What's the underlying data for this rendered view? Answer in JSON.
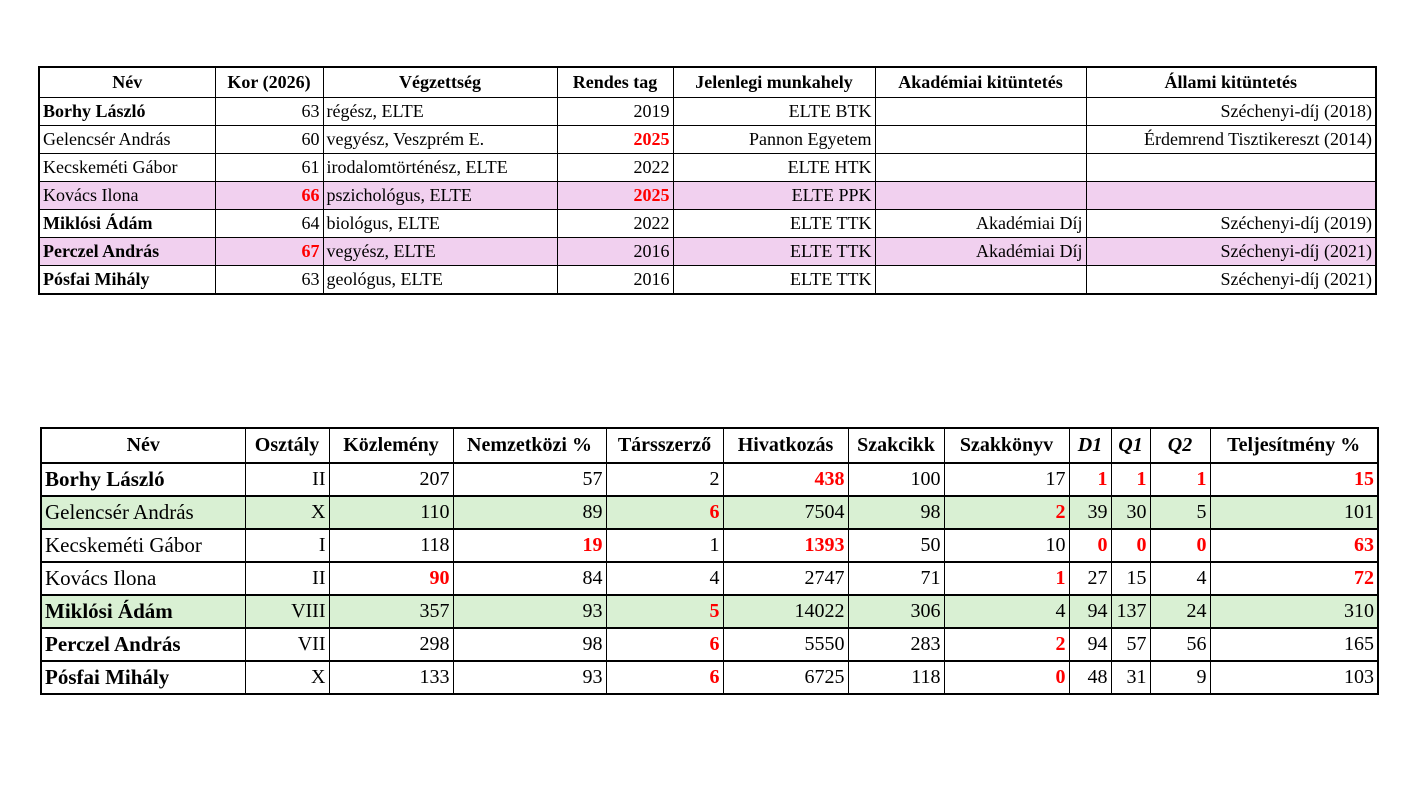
{
  "table1": {
    "headers": [
      "Név",
      "Kor (2026)",
      "Végzettség",
      "Rendes tag",
      "Jelenlegi munkahely",
      "Akadémiai kitüntetés",
      "Állami kitüntetés"
    ],
    "highlight_color": "#f1d0ef",
    "rows": [
      {
        "name": "Borhy László",
        "bold": true,
        "hl": false,
        "cells": [
          {
            "v": "63"
          },
          {
            "v": "régész, ELTE"
          },
          {
            "v": "2019"
          },
          {
            "v": "ELTE BTK"
          },
          {
            "v": ""
          },
          {
            "v": "Széchenyi-díj (2018)"
          }
        ]
      },
      {
        "name": "Gelencsér András",
        "bold": false,
        "hl": false,
        "cells": [
          {
            "v": "60"
          },
          {
            "v": "vegyész, Veszprém E."
          },
          {
            "v": "2025",
            "red": true
          },
          {
            "v": "Pannon Egyetem"
          },
          {
            "v": ""
          },
          {
            "v": "Érdemrend Tisztikereszt (2014)"
          }
        ]
      },
      {
        "name": "Kecskeméti Gábor",
        "bold": false,
        "hl": false,
        "cells": [
          {
            "v": "61"
          },
          {
            "v": "irodalomtörténész, ELTE"
          },
          {
            "v": "2022"
          },
          {
            "v": "ELTE HTK"
          },
          {
            "v": ""
          },
          {
            "v": ""
          }
        ]
      },
      {
        "name": "Kovács Ilona",
        "bold": false,
        "hl": true,
        "cells": [
          {
            "v": "66",
            "red": true
          },
          {
            "v": "pszichológus, ELTE"
          },
          {
            "v": "2025",
            "red": true
          },
          {
            "v": "ELTE PPK"
          },
          {
            "v": ""
          },
          {
            "v": ""
          }
        ]
      },
      {
        "name": "Miklósi Ádám",
        "bold": true,
        "hl": false,
        "cells": [
          {
            "v": "64"
          },
          {
            "v": "biológus, ELTE"
          },
          {
            "v": "2022"
          },
          {
            "v": "ELTE TTK"
          },
          {
            "v": "Akadémiai Díj"
          },
          {
            "v": "Széchenyi-díj (2019)"
          }
        ]
      },
      {
        "name": "Perczel András",
        "bold": true,
        "hl": true,
        "cells": [
          {
            "v": "67",
            "red": true
          },
          {
            "v": "vegyész, ELTE"
          },
          {
            "v": "2016"
          },
          {
            "v": "ELTE TTK"
          },
          {
            "v": "Akadémiai Díj"
          },
          {
            "v": "Széchenyi-díj (2021)"
          }
        ]
      },
      {
        "name": "Pósfai Mihály",
        "bold": true,
        "hl": false,
        "cells": [
          {
            "v": "63"
          },
          {
            "v": "geológus, ELTE"
          },
          {
            "v": "2016"
          },
          {
            "v": "ELTE TTK"
          },
          {
            "v": ""
          },
          {
            "v": "Széchenyi-díj (2021)"
          }
        ]
      }
    ]
  },
  "table2": {
    "headers": [
      "Név",
      "Osztály",
      "Közlemény",
      "Nemzetközi %",
      "Társszerző",
      "Hivatkozás",
      "Szakcikk",
      "Szakkönyv",
      "D1",
      "Q1",
      "Q2",
      "Teljesítmény %"
    ],
    "highlight_color": "#d9f0d3",
    "rows": [
      {
        "name": "Borhy László",
        "bold": true,
        "hl": false,
        "cells": [
          {
            "v": "II"
          },
          {
            "v": "207"
          },
          {
            "v": "57"
          },
          {
            "v": "2"
          },
          {
            "v": "438",
            "red": true
          },
          {
            "v": "100"
          },
          {
            "v": "17"
          },
          {
            "v": "1",
            "red": true
          },
          {
            "v": "1",
            "red": true
          },
          {
            "v": "1",
            "red": true
          },
          {
            "v": "15",
            "red": true
          }
        ]
      },
      {
        "name": "Gelencsér András",
        "bold": false,
        "hl": true,
        "cells": [
          {
            "v": "X"
          },
          {
            "v": "110"
          },
          {
            "v": "89"
          },
          {
            "v": "6",
            "red": true
          },
          {
            "v": "7504"
          },
          {
            "v": "98"
          },
          {
            "v": "2",
            "red": true
          },
          {
            "v": "39"
          },
          {
            "v": "30"
          },
          {
            "v": "5"
          },
          {
            "v": "101"
          }
        ]
      },
      {
        "name": "Kecskeméti Gábor",
        "bold": false,
        "hl": false,
        "cells": [
          {
            "v": "I"
          },
          {
            "v": "118"
          },
          {
            "v": "19",
            "red": true
          },
          {
            "v": "1"
          },
          {
            "v": "1393",
            "red": true
          },
          {
            "v": "50"
          },
          {
            "v": "10"
          },
          {
            "v": "0",
            "red": true
          },
          {
            "v": "0",
            "red": true
          },
          {
            "v": "0",
            "red": true
          },
          {
            "v": "63",
            "red": true
          }
        ]
      },
      {
        "name": "Kovács Ilona",
        "bold": false,
        "hl": false,
        "cells": [
          {
            "v": "II"
          },
          {
            "v": "90",
            "red": true
          },
          {
            "v": "84"
          },
          {
            "v": "4"
          },
          {
            "v": "2747"
          },
          {
            "v": "71"
          },
          {
            "v": "1",
            "red": true
          },
          {
            "v": "27"
          },
          {
            "v": "15"
          },
          {
            "v": "4"
          },
          {
            "v": "72",
            "red": true
          }
        ]
      },
      {
        "name": "Miklósi Ádám",
        "bold": true,
        "hl": true,
        "cells": [
          {
            "v": "VIII"
          },
          {
            "v": "357"
          },
          {
            "v": "93"
          },
          {
            "v": "5",
            "red": true
          },
          {
            "v": "14022"
          },
          {
            "v": "306"
          },
          {
            "v": "4"
          },
          {
            "v": "94"
          },
          {
            "v": "137"
          },
          {
            "v": "24"
          },
          {
            "v": "310"
          }
        ]
      },
      {
        "name": "Perczel András",
        "bold": true,
        "hl": false,
        "cells": [
          {
            "v": "VII"
          },
          {
            "v": "298"
          },
          {
            "v": "98"
          },
          {
            "v": "6",
            "red": true
          },
          {
            "v": "5550"
          },
          {
            "v": "283"
          },
          {
            "v": "2",
            "red": true
          },
          {
            "v": "94"
          },
          {
            "v": "57"
          },
          {
            "v": "56"
          },
          {
            "v": "165"
          }
        ]
      },
      {
        "name": "Pósfai Mihály",
        "bold": true,
        "hl": false,
        "cells": [
          {
            "v": "X"
          },
          {
            "v": "133"
          },
          {
            "v": "93"
          },
          {
            "v": "6",
            "red": true
          },
          {
            "v": "6725"
          },
          {
            "v": "118"
          },
          {
            "v": "0",
            "red": true
          },
          {
            "v": "48"
          },
          {
            "v": "31"
          },
          {
            "v": "9"
          },
          {
            "v": "103"
          }
        ]
      }
    ]
  }
}
